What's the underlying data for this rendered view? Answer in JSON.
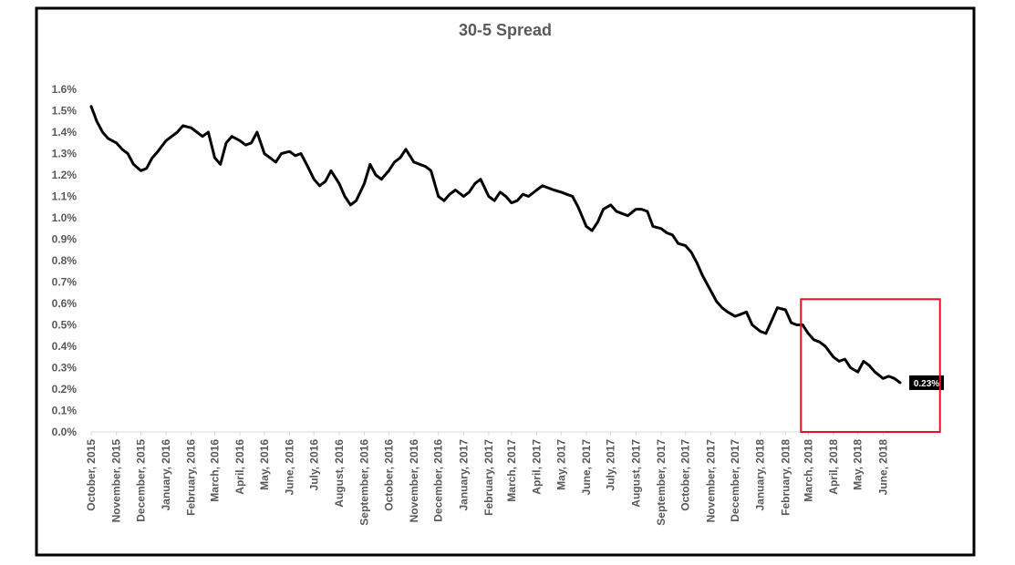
{
  "chart_data": {
    "type": "line",
    "title": "30-5 Spread",
    "xlabel": "",
    "ylabel": "",
    "ylim": [
      0,
      0.016
    ],
    "yticks": [
      "0.0%",
      "0.1%",
      "0.2%",
      "0.3%",
      "0.4%",
      "0.5%",
      "0.6%",
      "0.7%",
      "0.8%",
      "0.9%",
      "1.0%",
      "1.1%",
      "1.2%",
      "1.3%",
      "1.4%",
      "1.5%",
      "1.6%"
    ],
    "xticks": [
      "October, 2015",
      "November, 2015",
      "December, 2015",
      "January, 2016",
      "February, 2016",
      "March, 2016",
      "April, 2016",
      "May, 2016",
      "June, 2016",
      "July, 2016",
      "August, 2016",
      "September, 2016",
      "October, 2016",
      "November, 2016",
      "December, 2016",
      "January, 2017",
      "February, 2017",
      "March, 2017",
      "April, 2017",
      "May, 2017",
      "June, 2017",
      "July, 2017",
      "August, 2017",
      "September, 2017",
      "October, 2017",
      "November, 2017",
      "December, 2017",
      "January, 2018",
      "February, 2018",
      "March, 2018",
      "April, 2018",
      "May, 2018",
      "June, 2018"
    ],
    "grid": false,
    "legend": "none",
    "series": [
      {
        "line_color": "#000000",
        "x": [
          "2015-10-01",
          "2015-10-08",
          "2015-10-15",
          "2015-10-22",
          "2015-11-01",
          "2015-11-08",
          "2015-11-15",
          "2015-11-22",
          "2015-12-01",
          "2015-12-08",
          "2015-12-15",
          "2015-12-22",
          "2016-01-01",
          "2016-01-08",
          "2016-01-15",
          "2016-01-22",
          "2016-02-01",
          "2016-02-08",
          "2016-02-15",
          "2016-02-22",
          "2016-03-01",
          "2016-03-08",
          "2016-03-15",
          "2016-03-22",
          "2016-04-01",
          "2016-04-08",
          "2016-04-15",
          "2016-04-22",
          "2016-05-01",
          "2016-05-08",
          "2016-05-15",
          "2016-05-22",
          "2016-06-01",
          "2016-06-08",
          "2016-06-15",
          "2016-06-22",
          "2016-07-01",
          "2016-07-08",
          "2016-07-15",
          "2016-07-22",
          "2016-08-01",
          "2016-08-08",
          "2016-08-15",
          "2016-08-22",
          "2016-09-01",
          "2016-09-08",
          "2016-09-15",
          "2016-09-22",
          "2016-10-01",
          "2016-10-08",
          "2016-10-15",
          "2016-10-22",
          "2016-11-01",
          "2016-11-08",
          "2016-11-15",
          "2016-11-22",
          "2016-12-01",
          "2016-12-08",
          "2016-12-15",
          "2016-12-22",
          "2017-01-01",
          "2017-01-08",
          "2017-01-15",
          "2017-01-22",
          "2017-02-01",
          "2017-02-08",
          "2017-02-15",
          "2017-02-22",
          "2017-03-01",
          "2017-03-08",
          "2017-03-15",
          "2017-03-22",
          "2017-04-01",
          "2017-04-08",
          "2017-04-15",
          "2017-04-22",
          "2017-05-01",
          "2017-05-08",
          "2017-05-15",
          "2017-05-22",
          "2017-06-01",
          "2017-06-08",
          "2017-06-15",
          "2017-06-22",
          "2017-07-01",
          "2017-07-08",
          "2017-07-15",
          "2017-07-22",
          "2017-08-01",
          "2017-08-08",
          "2017-08-15",
          "2017-08-22",
          "2017-09-01",
          "2017-09-08",
          "2017-09-15",
          "2017-09-22",
          "2017-10-01",
          "2017-10-08",
          "2017-10-15",
          "2017-10-22",
          "2017-11-01",
          "2017-11-08",
          "2017-11-15",
          "2017-11-22",
          "2017-12-01",
          "2017-12-08",
          "2017-12-15",
          "2017-12-22",
          "2018-01-01",
          "2018-01-08",
          "2018-01-15",
          "2018-01-22",
          "2018-02-01",
          "2018-02-08",
          "2018-02-15",
          "2018-02-22",
          "2018-03-01",
          "2018-03-08",
          "2018-03-15",
          "2018-03-22",
          "2018-04-01",
          "2018-04-08",
          "2018-04-15",
          "2018-04-22",
          "2018-05-01",
          "2018-05-08",
          "2018-05-15",
          "2018-05-22",
          "2018-06-01",
          "2018-06-08",
          "2018-06-15",
          "2018-06-22"
        ],
        "values": [
          0.0152,
          0.0145,
          0.014,
          0.0137,
          0.0135,
          0.0132,
          0.013,
          0.0125,
          0.0122,
          0.0123,
          0.0128,
          0.0131,
          0.0136,
          0.0138,
          0.014,
          0.0143,
          0.0142,
          0.014,
          0.0138,
          0.014,
          0.0128,
          0.0125,
          0.0135,
          0.0138,
          0.0136,
          0.0134,
          0.0135,
          0.014,
          0.013,
          0.0128,
          0.0126,
          0.013,
          0.0131,
          0.0129,
          0.013,
          0.0125,
          0.0118,
          0.0115,
          0.0117,
          0.0122,
          0.0116,
          0.011,
          0.0106,
          0.0108,
          0.0116,
          0.0125,
          0.012,
          0.0118,
          0.0122,
          0.0126,
          0.0128,
          0.0132,
          0.0126,
          0.0125,
          0.0124,
          0.0122,
          0.011,
          0.0108,
          0.0111,
          0.0113,
          0.011,
          0.0112,
          0.0116,
          0.0118,
          0.011,
          0.0108,
          0.0112,
          0.011,
          0.0107,
          0.0108,
          0.0111,
          0.011,
          0.0113,
          0.0115,
          0.0114,
          0.0113,
          0.0112,
          0.0111,
          0.011,
          0.0105,
          0.0096,
          0.0094,
          0.0098,
          0.0104,
          0.0106,
          0.0103,
          0.0102,
          0.0101,
          0.0104,
          0.0104,
          0.0103,
          0.0096,
          0.0095,
          0.0093,
          0.0092,
          0.0088,
          0.0087,
          0.0084,
          0.0079,
          0.0073,
          0.0066,
          0.0061,
          0.0058,
          0.0056,
          0.0054,
          0.0055,
          0.0056,
          0.005,
          0.0047,
          0.0046,
          0.0052,
          0.0058,
          0.0057,
          0.0051,
          0.005,
          0.005,
          0.0046,
          0.0043,
          0.0042,
          0.004,
          0.0035,
          0.0033,
          0.0034,
          0.003,
          0.0028,
          0.0033,
          0.0031,
          0.0028,
          0.0025,
          0.0026,
          0.0025,
          0.0023
        ]
      }
    ],
    "annotations": [
      {
        "text": "0.23%",
        "x": "2018-06-22",
        "value": 0.0023,
        "style": "label-box",
        "bg": "#000000",
        "color": "#ffffff"
      },
      {
        "style": "highlight-rect",
        "color": "#e81123",
        "x_from": "2018-02-20",
        "x_to": "2018-08-10",
        "y_from": 0.0,
        "y_to": 0.0062
      }
    ]
  }
}
